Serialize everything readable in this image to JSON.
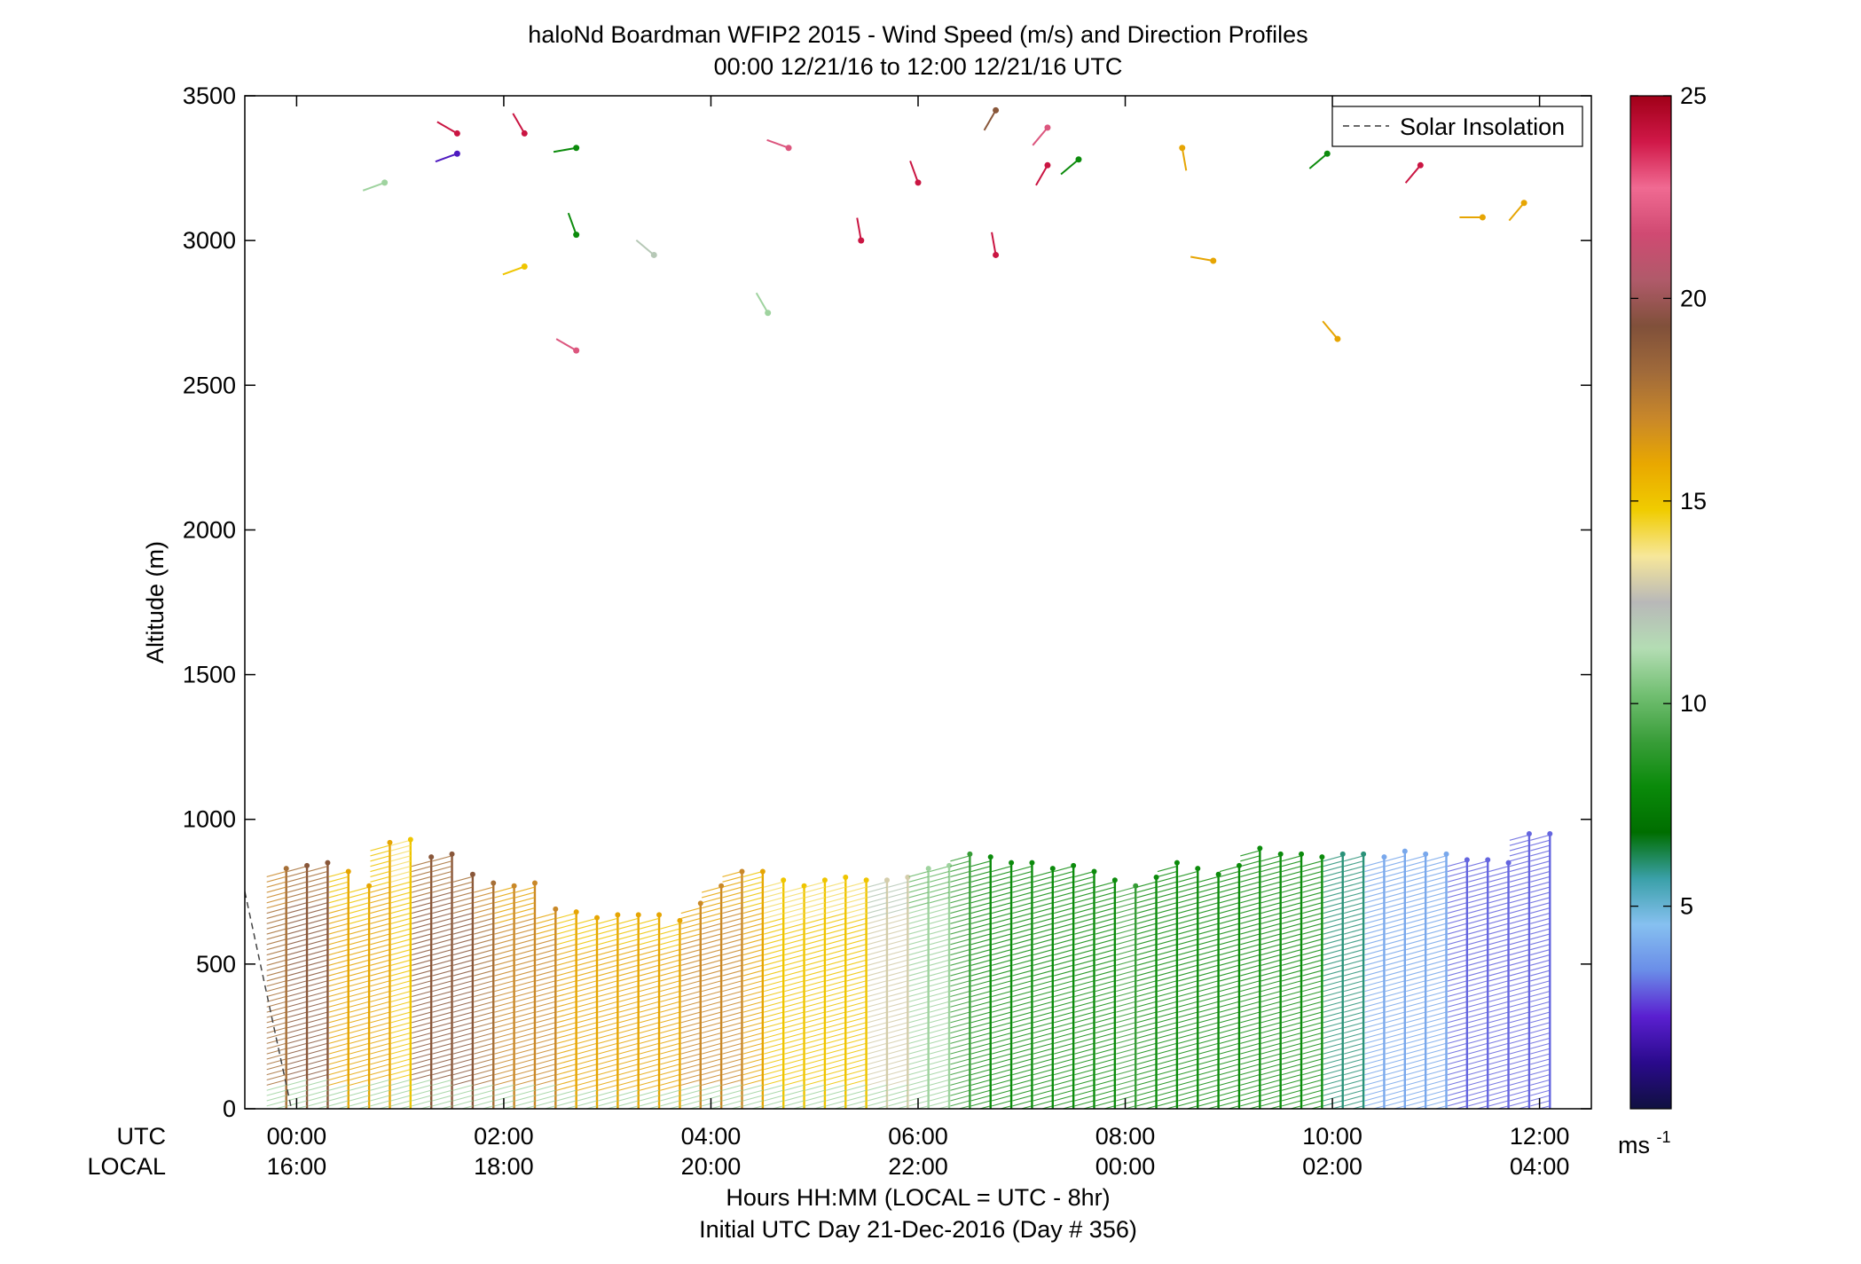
{
  "chart_data": {
    "type": "wind-profile",
    "title": "haloNd Boardman WFIP2 2015 - Wind Speed (m/s) and Direction Profiles",
    "subtitle": "00:00 12/21/16 to 12:00 12/21/16  UTC",
    "ylabel": "Altitude (m)",
    "xlabel": "Hours HH:MM  (LOCAL = UTC - 8hr)",
    "xlabel2": "Initial UTC Day 21-Dec-2016 (Day # 356)",
    "row_label_utc": "UTC",
    "row_label_local": "LOCAL",
    "ylim": [
      0,
      3500
    ],
    "y_ticks": [
      0,
      500,
      1000,
      1500,
      2000,
      2500,
      3000,
      3500
    ],
    "xlim_hours": [
      -0.5,
      12.5
    ],
    "x_ticks_hours": [
      0,
      2,
      4,
      6,
      8,
      10,
      12
    ],
    "x_tick_labels_utc": [
      "00:00",
      "02:00",
      "04:00",
      "06:00",
      "08:00",
      "10:00",
      "12:00"
    ],
    "x_tick_labels_local": [
      "16:00",
      "18:00",
      "20:00",
      "22:00",
      "00:00",
      "02:00",
      "04:00"
    ],
    "legend": {
      "entries": [
        "Solar Insolation"
      ],
      "placement": "top-right"
    },
    "colorbar": {
      "min": 0,
      "max": 25,
      "ticks": [
        5,
        10,
        15,
        20,
        25
      ],
      "unit": "ms",
      "unit_exp": "-1",
      "colors": [
        "#101040",
        "#2a0a8c",
        "#5a1fd0",
        "#6a8de8",
        "#86c0f0",
        "#3aa0a8",
        "#006e00",
        "#0a8a0a",
        "#3a9e3a",
        "#72bf72",
        "#b4ddb4",
        "#b8b8b8",
        "#f7e79a",
        "#f0cc00",
        "#e9a800",
        "#c8872a",
        "#a06a3a",
        "#80503a",
        "#b05a6a",
        "#d04a72",
        "#f06a92",
        "#d01848",
        "#a00018"
      ]
    },
    "profile_times_hours": [
      -0.1,
      0.1,
      0.3,
      0.5,
      0.7,
      0.9,
      1.1,
      1.3,
      1.5,
      1.7,
      1.9,
      2.1,
      2.3,
      2.5,
      2.7,
      2.9,
      3.1,
      3.3,
      3.5,
      3.7,
      3.9,
      4.1,
      4.3,
      4.5,
      4.7,
      4.9,
      5.1,
      5.3,
      5.5,
      5.7,
      5.9,
      6.1,
      6.3,
      6.5,
      6.7,
      6.9,
      7.1,
      7.3,
      7.5,
      7.7,
      7.9,
      8.1,
      8.3,
      8.5,
      8.7,
      8.9,
      9.1,
      9.3,
      9.5,
      9.7,
      9.9,
      10.1,
      10.3,
      10.5,
      10.7,
      10.9,
      11.1,
      11.3,
      11.5,
      11.7,
      11.9,
      12.1
    ],
    "profile_top_m": [
      830,
      840,
      850,
      820,
      770,
      920,
      930,
      870,
      880,
      810,
      780,
      770,
      780,
      690,
      680,
      660,
      670,
      670,
      670,
      650,
      710,
      770,
      820,
      820,
      790,
      770,
      790,
      800,
      790,
      790,
      800,
      830,
      840,
      880,
      870,
      850,
      850,
      830,
      840,
      820,
      790,
      770,
      800,
      850,
      830,
      810,
      840,
      900,
      880,
      880,
      870,
      880,
      880,
      870,
      890,
      880,
      880,
      860,
      860,
      850,
      950,
      950
    ],
    "profile_speed_mps": [
      18,
      19,
      19,
      16,
      16,
      16,
      15,
      19,
      19,
      19,
      18,
      17,
      17,
      17,
      16,
      16,
      16,
      16,
      16,
      16,
      17,
      17,
      17,
      16,
      15,
      15,
      15,
      15,
      15,
      13,
      13,
      11,
      11,
      9,
      8,
      8,
      8,
      8,
      8,
      8,
      8,
      9,
      8,
      8,
      8,
      8,
      8,
      8,
      8,
      8,
      8,
      6,
      6,
      4,
      4,
      4,
      4,
      3,
      3,
      3,
      3,
      3
    ],
    "sparse_points": [
      {
        "hour": 0.85,
        "alt_m": 3200,
        "speed": 11,
        "dir_deg": 250
      },
      {
        "hour": 1.55,
        "alt_m": 3300,
        "speed": 2,
        "dir_deg": 250
      },
      {
        "hour": 1.55,
        "alt_m": 3370,
        "speed": 24,
        "dir_deg": 300
      },
      {
        "hour": 2.2,
        "alt_m": 3370,
        "speed": 24,
        "dir_deg": 330
      },
      {
        "hour": 2.2,
        "alt_m": 2910,
        "speed": 15,
        "dir_deg": 250
      },
      {
        "hour": 2.7,
        "alt_m": 3320,
        "speed": 8,
        "dir_deg": 260
      },
      {
        "hour": 2.7,
        "alt_m": 3020,
        "speed": 8,
        "dir_deg": 340
      },
      {
        "hour": 2.7,
        "alt_m": 2620,
        "speed": 22,
        "dir_deg": 300
      },
      {
        "hour": 3.45,
        "alt_m": 2950,
        "speed": 12,
        "dir_deg": 310
      },
      {
        "hour": 4.55,
        "alt_m": 2750,
        "speed": 11,
        "dir_deg": 330
      },
      {
        "hour": 4.75,
        "alt_m": 3320,
        "speed": 22,
        "dir_deg": 290
      },
      {
        "hour": 5.45,
        "alt_m": 3000,
        "speed": 24,
        "dir_deg": 350
      },
      {
        "hour": 6.0,
        "alt_m": 3200,
        "speed": 24,
        "dir_deg": 340
      },
      {
        "hour": 6.75,
        "alt_m": 3450,
        "speed": 19,
        "dir_deg": 210
      },
      {
        "hour": 6.75,
        "alt_m": 2950,
        "speed": 24,
        "dir_deg": 350
      },
      {
        "hour": 7.25,
        "alt_m": 3390,
        "speed": 22,
        "dir_deg": 220
      },
      {
        "hour": 7.25,
        "alt_m": 3260,
        "speed": 24,
        "dir_deg": 210
      },
      {
        "hour": 7.55,
        "alt_m": 3280,
        "speed": 8,
        "dir_deg": 230
      },
      {
        "hour": 8.55,
        "alt_m": 3320,
        "speed": 16,
        "dir_deg": 170
      },
      {
        "hour": 8.85,
        "alt_m": 2930,
        "speed": 16,
        "dir_deg": 280
      },
      {
        "hour": 9.95,
        "alt_m": 3300,
        "speed": 8,
        "dir_deg": 230
      },
      {
        "hour": 10.05,
        "alt_m": 2660,
        "speed": 16,
        "dir_deg": 320
      },
      {
        "hour": 10.85,
        "alt_m": 3260,
        "speed": 24,
        "dir_deg": 220
      },
      {
        "hour": 11.45,
        "alt_m": 3080,
        "speed": 16,
        "dir_deg": 270
      },
      {
        "hour": 11.85,
        "alt_m": 3130,
        "speed": 16,
        "dir_deg": 220
      }
    ],
    "solar_insolation_line": [
      [
        -0.5,
        750
      ],
      [
        -0.05,
        0
      ]
    ]
  }
}
